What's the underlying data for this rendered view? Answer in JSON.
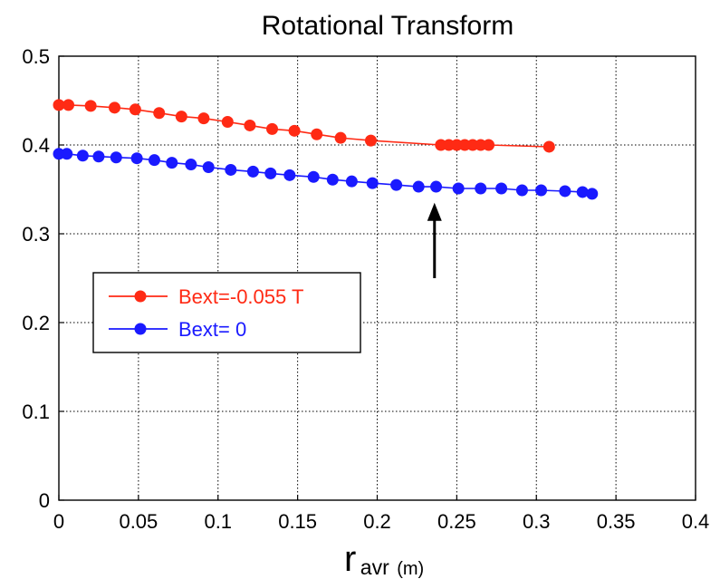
{
  "chart_data": {
    "type": "line",
    "title": "Rotational Transform",
    "xlabel": {
      "main": "r",
      "sub": "avr",
      "unit": "(m)"
    },
    "ylabel": "",
    "xlim": [
      0,
      0.4
    ],
    "ylim": [
      0,
      0.5
    ],
    "grid": true,
    "legend_position": "center-left",
    "x_ticks": [
      "0",
      "0.05",
      "0.1",
      "0.15",
      "0.2",
      "0.25",
      "0.3",
      "0.35",
      "0.4"
    ],
    "y_ticks": [
      "0",
      "0.1",
      "0.2",
      "0.3",
      "0.4",
      "0.5"
    ],
    "series": [
      {
        "name": "Bext=-0.055 T",
        "color": "#ff2a14",
        "points": [
          [
            0.0,
            0.445
          ],
          [
            0.006,
            0.445
          ],
          [
            0.02,
            0.444
          ],
          [
            0.035,
            0.442
          ],
          [
            0.048,
            0.44
          ],
          [
            0.063,
            0.436
          ],
          [
            0.077,
            0.432
          ],
          [
            0.091,
            0.43
          ],
          [
            0.106,
            0.426
          ],
          [
            0.12,
            0.422
          ],
          [
            0.134,
            0.418
          ],
          [
            0.148,
            0.416
          ],
          [
            0.162,
            0.412
          ],
          [
            0.177,
            0.408
          ],
          [
            0.196,
            0.405
          ],
          [
            0.24,
            0.4
          ],
          [
            0.245,
            0.4
          ],
          [
            0.25,
            0.4
          ],
          [
            0.255,
            0.4
          ],
          [
            0.26,
            0.4
          ],
          [
            0.265,
            0.4
          ],
          [
            0.27,
            0.4
          ],
          [
            0.308,
            0.398
          ]
        ]
      },
      {
        "name": "Bext= 0",
        "color": "#1a1aff",
        "points": [
          [
            0.0,
            0.39
          ],
          [
            0.005,
            0.39
          ],
          [
            0.015,
            0.388
          ],
          [
            0.025,
            0.387
          ],
          [
            0.036,
            0.386
          ],
          [
            0.049,
            0.385
          ],
          [
            0.06,
            0.383
          ],
          [
            0.071,
            0.38
          ],
          [
            0.083,
            0.378
          ],
          [
            0.094,
            0.375
          ],
          [
            0.108,
            0.372
          ],
          [
            0.122,
            0.37
          ],
          [
            0.133,
            0.368
          ],
          [
            0.145,
            0.366
          ],
          [
            0.16,
            0.364
          ],
          [
            0.172,
            0.361
          ],
          [
            0.184,
            0.359
          ],
          [
            0.197,
            0.357
          ],
          [
            0.212,
            0.355
          ],
          [
            0.226,
            0.353
          ],
          [
            0.237,
            0.353
          ],
          [
            0.251,
            0.351
          ],
          [
            0.265,
            0.351
          ],
          [
            0.278,
            0.351
          ],
          [
            0.291,
            0.349
          ],
          [
            0.303,
            0.349
          ],
          [
            0.318,
            0.348
          ],
          [
            0.329,
            0.347
          ],
          [
            0.335,
            0.345
          ]
        ]
      }
    ],
    "annotations": [
      {
        "type": "arrow",
        "x": 0.236,
        "y_from": 0.25,
        "y_to": 0.335,
        "color": "#000000"
      }
    ]
  }
}
